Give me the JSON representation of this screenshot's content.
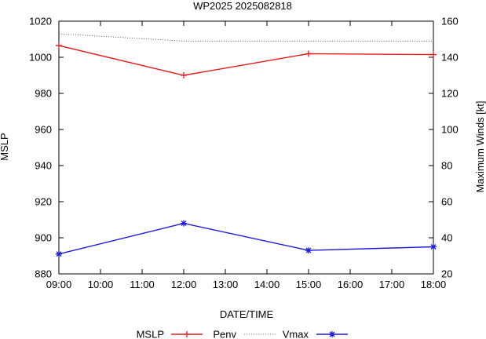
{
  "chart_data": {
    "type": "line",
    "title": "WP2025 2025082818",
    "xlabel": "DATE/TIME",
    "ylabel_left": "MSLP",
    "ylabel_right": "Maximum Winds [kt]",
    "x_ticks": [
      "09:00",
      "10:00",
      "11:00",
      "12:00",
      "13:00",
      "14:00",
      "15:00",
      "16:00",
      "17:00",
      "18:00"
    ],
    "xlim_hours": [
      9,
      18
    ],
    "ylim_left": [
      880,
      1020
    ],
    "y_ticks_left": [
      880,
      900,
      920,
      940,
      960,
      980,
      1000,
      1020
    ],
    "ylim_right": [
      20,
      160
    ],
    "y_ticks_right": [
      20,
      40,
      60,
      80,
      100,
      120,
      140,
      160
    ],
    "legend_position": "bottom",
    "series": [
      {
        "name": "MSLP",
        "axis": "left",
        "color": "#e41a1c",
        "style": "line-plus-markers",
        "x": [
          9,
          12,
          15,
          18
        ],
        "y": [
          1006.5,
          990,
          1002,
          1001.5
        ]
      },
      {
        "name": "Penv",
        "axis": "left",
        "color": "#555555",
        "style": "dotted",
        "x": [
          9,
          12,
          15,
          18
        ],
        "y": [
          1013,
          1009,
          1009,
          1009
        ]
      },
      {
        "name": "Vmax",
        "axis": "right",
        "color": "#1a1adc",
        "style": "line-star-markers",
        "x": [
          9,
          12,
          15,
          18
        ],
        "y": [
          31,
          48,
          33,
          35
        ]
      }
    ]
  }
}
